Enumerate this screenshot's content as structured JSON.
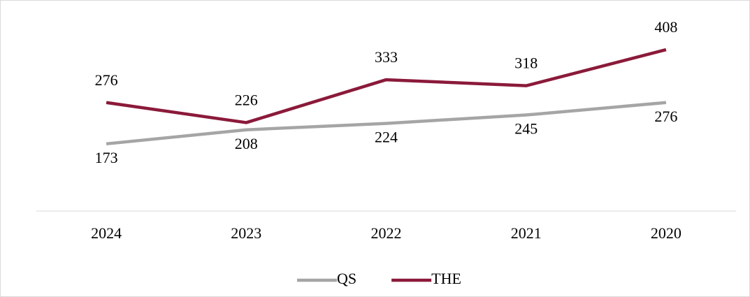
{
  "chart_data": {
    "type": "line",
    "categories": [
      "2024",
      "2023",
      "2022",
      "2021",
      "2020"
    ],
    "series": [
      {
        "name": "QS",
        "color": "#a5a5a5",
        "values": [
          173,
          208,
          224,
          245,
          276
        ]
      },
      {
        "name": "THE",
        "color": "#8b1a3a",
        "values": [
          276,
          226,
          333,
          318,
          408
        ]
      }
    ],
    "ylim": [
      0,
      450
    ],
    "legend": "bottom"
  }
}
